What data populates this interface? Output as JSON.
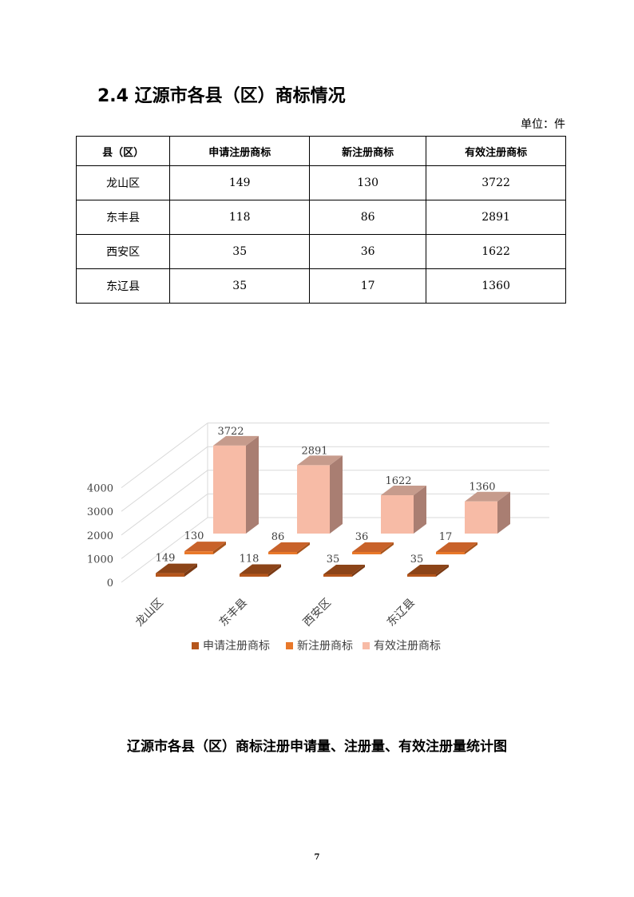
{
  "heading": "2.4  辽源市各县（区）商标情况",
  "unit": "单位：件",
  "table": {
    "headers": [
      "县（区）",
      "申请注册商标",
      "新注册商标",
      "有效注册商标"
    ],
    "rows": [
      [
        "龙山区",
        "149",
        "130",
        "3722"
      ],
      [
        "东丰县",
        "118",
        "86",
        "2891"
      ],
      [
        "西安区",
        "35",
        "36",
        "1622"
      ],
      [
        "东辽县",
        "35",
        "17",
        "1360"
      ]
    ]
  },
  "chart_data": {
    "type": "bar",
    "subtype": "3d-clustered-column",
    "categories": [
      "龙山区",
      "东丰县",
      "西安区",
      "东辽县"
    ],
    "series": [
      {
        "name": "申请注册商标",
        "values": [
          149,
          118,
          35,
          35
        ],
        "color": "#b5561c"
      },
      {
        "name": "新注册商标",
        "values": [
          130,
          86,
          36,
          17
        ],
        "color": "#e8782a"
      },
      {
        "name": "有效注册商标",
        "values": [
          3722,
          2891,
          1622,
          1360
        ],
        "color": "#f7bba6"
      }
    ],
    "yticks": [
      "0",
      "1000",
      "2000",
      "3000",
      "4000"
    ],
    "ylim": [
      0,
      4000
    ],
    "grid": true,
    "legend": "bottom"
  },
  "caption": "辽源市各县（区）商标注册申请量、注册量、有效注册量统计图",
  "page_number": "7"
}
